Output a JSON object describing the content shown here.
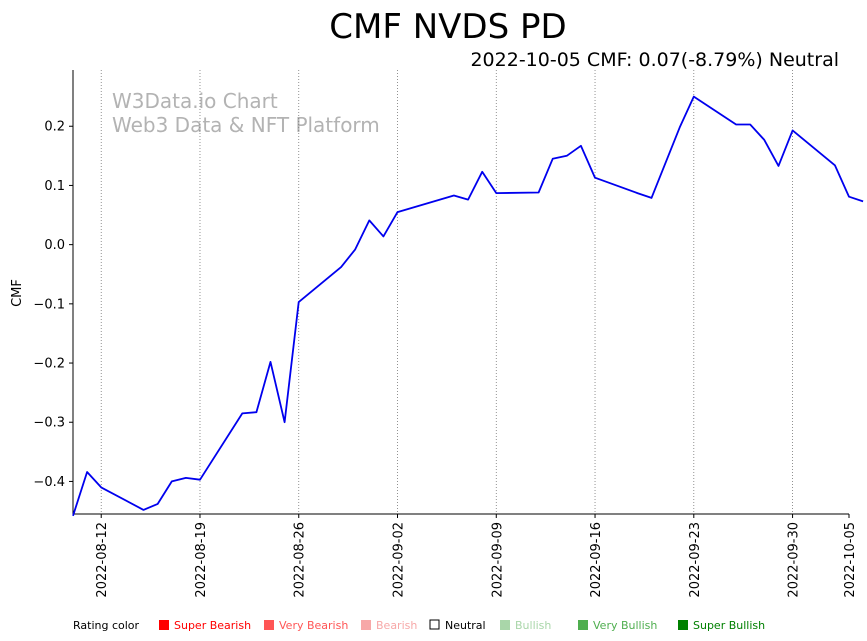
{
  "chart_data": {
    "type": "line",
    "title": "CMF NVDS PD",
    "subtitle": "2022-10-05 CMF: 0.07(-8.79%) Neutral",
    "ylabel": "CMF",
    "xlabel": "",
    "watermark_lines": [
      "W3Data.io Chart",
      "Web3 Data & NFT Platform"
    ],
    "x_range": [
      0,
      55
    ],
    "ylim": [
      -0.455,
      0.295
    ],
    "y_ticks": [
      -0.4,
      -0.3,
      -0.2,
      -0.1,
      0.0,
      0.1,
      0.2
    ],
    "x_ticks": [
      {
        "day": 2,
        "label": "2022-08-12"
      },
      {
        "day": 9,
        "label": "2022-08-19"
      },
      {
        "day": 16,
        "label": "2022-08-26"
      },
      {
        "day": 23,
        "label": "2022-09-02"
      },
      {
        "day": 30,
        "label": "2022-09-09"
      },
      {
        "day": 37,
        "label": "2022-09-16"
      },
      {
        "day": 44,
        "label": "2022-09-23"
      },
      {
        "day": 51,
        "label": "2022-09-30"
      },
      {
        "day": 56,
        "label": "2022-10-05"
      }
    ],
    "grid": "vertical dotted at x ticks",
    "series": [
      {
        "name": "CMF",
        "color": "#0000ee",
        "points": [
          [
            0,
            -0.458
          ],
          [
            1,
            -0.384
          ],
          [
            2,
            -0.41
          ],
          [
            5,
            -0.448
          ],
          [
            6,
            -0.438
          ],
          [
            7,
            -0.4
          ],
          [
            8,
            -0.394
          ],
          [
            9,
            -0.397
          ],
          [
            12,
            -0.285
          ],
          [
            13,
            -0.283
          ],
          [
            14,
            -0.198
          ],
          [
            15,
            -0.3
          ],
          [
            16,
            -0.097
          ],
          [
            19,
            -0.038
          ],
          [
            20,
            -0.008
          ],
          [
            21,
            0.041
          ],
          [
            22,
            0.014
          ],
          [
            23,
            0.055
          ],
          [
            27,
            0.083
          ],
          [
            28,
            0.076
          ],
          [
            29,
            0.123
          ],
          [
            30,
            0.087
          ],
          [
            33,
            0.088
          ],
          [
            34,
            0.145
          ],
          [
            35,
            0.15
          ],
          [
            36,
            0.167
          ],
          [
            37,
            0.113
          ],
          [
            40,
            0.087
          ],
          [
            41,
            0.079
          ],
          [
            43,
            0.198
          ],
          [
            44,
            0.25
          ],
          [
            47,
            0.203
          ],
          [
            48,
            0.203
          ],
          [
            49,
            0.177
          ],
          [
            50,
            0.133
          ],
          [
            51,
            0.193
          ],
          [
            54,
            0.134
          ],
          [
            55,
            0.081
          ],
          [
            56,
            0.073
          ]
        ]
      }
    ]
  },
  "legend": {
    "label": "Rating color",
    "items": [
      {
        "name": "Super Bearish",
        "color": "#ff0000"
      },
      {
        "name": "Very Bearish",
        "color": "#ff5555"
      },
      {
        "name": "Bearish",
        "color": "#f7a8a8"
      },
      {
        "name": "Neutral",
        "color": "#000000",
        "hollow": true
      },
      {
        "name": "Bullish",
        "color": "#a9d6a9"
      },
      {
        "name": "Very Bullish",
        "color": "#4fae4f"
      },
      {
        "name": "Super Bullish",
        "color": "#008000"
      }
    ]
  }
}
